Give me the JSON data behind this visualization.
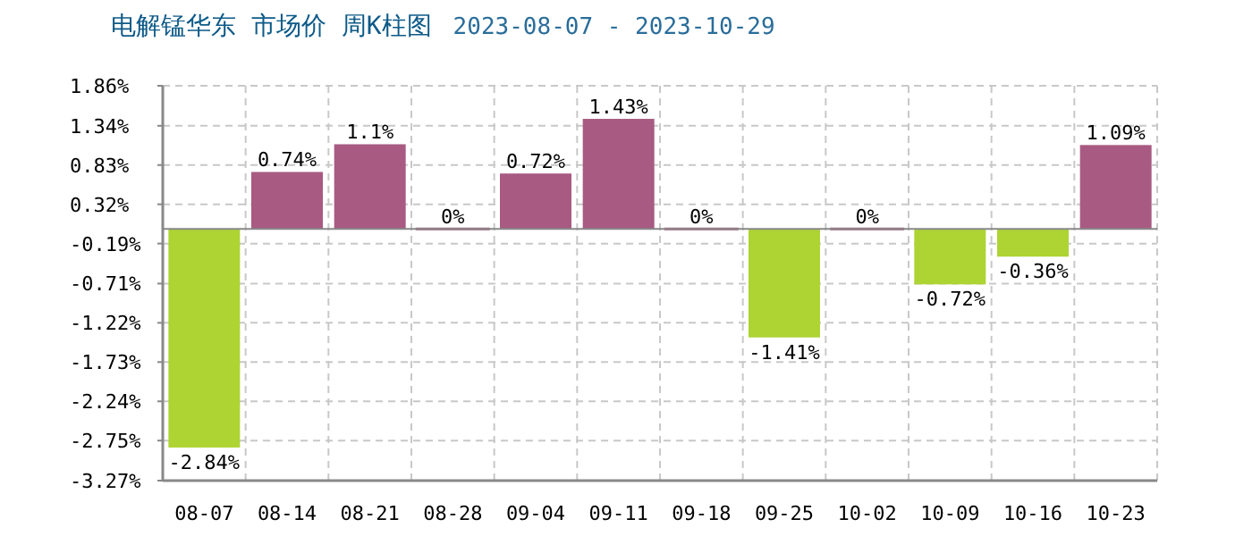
{
  "chart_data": {
    "type": "bar",
    "title": "电解锰华东 市场价 周K柱图",
    "subtitle": "2023-08-07 - 2023-10-29",
    "categories": [
      "08-07",
      "08-14",
      "08-21",
      "08-28",
      "09-04",
      "09-11",
      "09-18",
      "09-25",
      "10-02",
      "10-09",
      "10-16",
      "10-23"
    ],
    "values": [
      -2.84,
      0.74,
      1.1,
      0,
      0.72,
      1.43,
      0,
      -1.41,
      0,
      -0.72,
      -0.36,
      1.09
    ],
    "colors": [
      "#add433",
      "#a85a82",
      "#a85a82",
      "#a85a82",
      "#a85a82",
      "#a85a82",
      "#a85a82",
      "#add433",
      "#a85a82",
      "#add433",
      "#add433",
      "#a85a82"
    ],
    "value_labels": [
      "-2.84%",
      "0.74%",
      "1.1%",
      "0%",
      "0.72%",
      "1.43%",
      "0%",
      "-1.41%",
      "0%",
      "-0.72%",
      "-0.36%",
      "1.09%"
    ],
    "ylim": [
      -3.27,
      1.86
    ],
    "yticks": [
      {
        "value": 1.86,
        "label": "1.86%"
      },
      {
        "value": 1.34,
        "label": "1.34%"
      },
      {
        "value": 0.83,
        "label": "0.83%"
      },
      {
        "value": 0.32,
        "label": "0.32%"
      },
      {
        "value": -0.19,
        "label": "-0.19%"
      },
      {
        "value": -0.71,
        "label": "-0.71%"
      },
      {
        "value": -1.22,
        "label": "-1.22%"
      },
      {
        "value": -1.73,
        "label": "-1.73%"
      },
      {
        "value": -2.24,
        "label": "-2.24%"
      },
      {
        "value": -2.75,
        "label": "-2.75%"
      },
      {
        "value": -3.27,
        "label": "-3.27%"
      }
    ],
    "grid": true
  }
}
